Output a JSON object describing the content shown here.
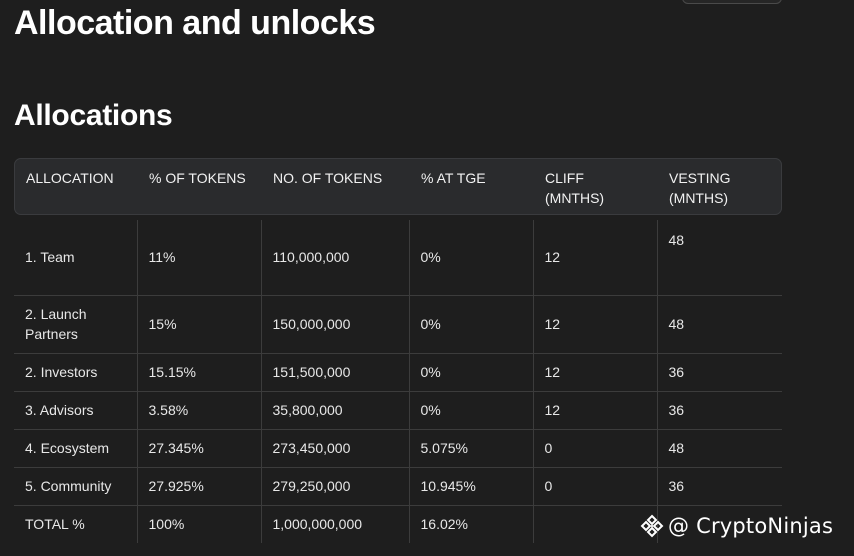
{
  "page": {
    "title": "Allocation and unlocks",
    "section_title": "Allocations"
  },
  "table": {
    "headers": [
      "ALLOCATION",
      "% OF TOKENS",
      "NO. OF TOKENS",
      "% AT TGE",
      "CLIFF (MNTHS)",
      "VESTING (MNTHS)"
    ],
    "rows": [
      [
        "1. Team",
        "11%",
        "110,000,000",
        "0%",
        "12",
        "48"
      ],
      [
        "2. Launch Partners",
        "15%",
        "150,000,000",
        "0%",
        "12",
        "48"
      ],
      [
        "2. Investors",
        "15.15%",
        "151,500,000",
        "0%",
        "12",
        "36"
      ],
      [
        "3. Advisors",
        "3.58%",
        "35,800,000",
        "0%",
        "12",
        "36"
      ],
      [
        "4. Ecosystem",
        "27.345%",
        "273,450,000",
        "5.075%",
        "0",
        "48"
      ],
      [
        "5. Community",
        "27.925%",
        "279,250,000",
        "10.945%",
        "0",
        "36"
      ],
      [
        "TOTAL %",
        "100%",
        "1,000,000,000",
        "16.02%",
        "",
        ""
      ]
    ]
  },
  "watermark": {
    "text": "@ CryptoNinjas",
    "icon": "binance-diamond-icon"
  }
}
